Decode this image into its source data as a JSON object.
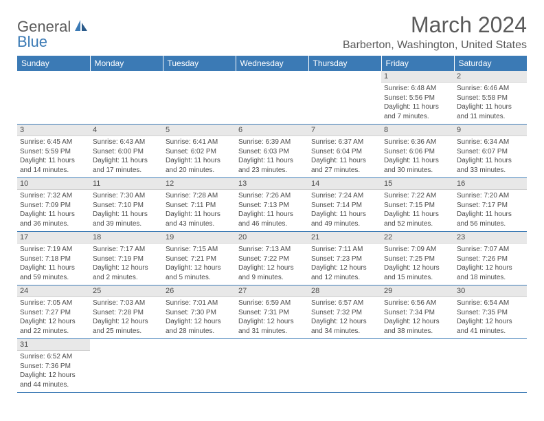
{
  "logo": {
    "general": "General",
    "blue": "Blue"
  },
  "title": "March 2024",
  "location": "Barberton, Washington, United States",
  "colors": {
    "header_bg": "#3b7ab5",
    "header_fg": "#ffffff",
    "daynum_bg": "#e8e8e8",
    "text": "#4a4a4a",
    "title": "#5a5a5a",
    "page_bg": "#ffffff"
  },
  "fonts": {
    "title_size": 32,
    "location_size": 16,
    "dow_size": 12,
    "cell_size": 10
  },
  "dow": [
    "Sunday",
    "Monday",
    "Tuesday",
    "Wednesday",
    "Thursday",
    "Friday",
    "Saturday"
  ],
  "weeks": [
    [
      {
        "n": "",
        "sr": "",
        "ss": "",
        "dl": ""
      },
      {
        "n": "",
        "sr": "",
        "ss": "",
        "dl": ""
      },
      {
        "n": "",
        "sr": "",
        "ss": "",
        "dl": ""
      },
      {
        "n": "",
        "sr": "",
        "ss": "",
        "dl": ""
      },
      {
        "n": "",
        "sr": "",
        "ss": "",
        "dl": ""
      },
      {
        "n": "1",
        "sr": "Sunrise: 6:48 AM",
        "ss": "Sunset: 5:56 PM",
        "dl": "Daylight: 11 hours and 7 minutes."
      },
      {
        "n": "2",
        "sr": "Sunrise: 6:46 AM",
        "ss": "Sunset: 5:58 PM",
        "dl": "Daylight: 11 hours and 11 minutes."
      }
    ],
    [
      {
        "n": "3",
        "sr": "Sunrise: 6:45 AM",
        "ss": "Sunset: 5:59 PM",
        "dl": "Daylight: 11 hours and 14 minutes."
      },
      {
        "n": "4",
        "sr": "Sunrise: 6:43 AM",
        "ss": "Sunset: 6:00 PM",
        "dl": "Daylight: 11 hours and 17 minutes."
      },
      {
        "n": "5",
        "sr": "Sunrise: 6:41 AM",
        "ss": "Sunset: 6:02 PM",
        "dl": "Daylight: 11 hours and 20 minutes."
      },
      {
        "n": "6",
        "sr": "Sunrise: 6:39 AM",
        "ss": "Sunset: 6:03 PM",
        "dl": "Daylight: 11 hours and 23 minutes."
      },
      {
        "n": "7",
        "sr": "Sunrise: 6:37 AM",
        "ss": "Sunset: 6:04 PM",
        "dl": "Daylight: 11 hours and 27 minutes."
      },
      {
        "n": "8",
        "sr": "Sunrise: 6:36 AM",
        "ss": "Sunset: 6:06 PM",
        "dl": "Daylight: 11 hours and 30 minutes."
      },
      {
        "n": "9",
        "sr": "Sunrise: 6:34 AM",
        "ss": "Sunset: 6:07 PM",
        "dl": "Daylight: 11 hours and 33 minutes."
      }
    ],
    [
      {
        "n": "10",
        "sr": "Sunrise: 7:32 AM",
        "ss": "Sunset: 7:09 PM",
        "dl": "Daylight: 11 hours and 36 minutes."
      },
      {
        "n": "11",
        "sr": "Sunrise: 7:30 AM",
        "ss": "Sunset: 7:10 PM",
        "dl": "Daylight: 11 hours and 39 minutes."
      },
      {
        "n": "12",
        "sr": "Sunrise: 7:28 AM",
        "ss": "Sunset: 7:11 PM",
        "dl": "Daylight: 11 hours and 43 minutes."
      },
      {
        "n": "13",
        "sr": "Sunrise: 7:26 AM",
        "ss": "Sunset: 7:13 PM",
        "dl": "Daylight: 11 hours and 46 minutes."
      },
      {
        "n": "14",
        "sr": "Sunrise: 7:24 AM",
        "ss": "Sunset: 7:14 PM",
        "dl": "Daylight: 11 hours and 49 minutes."
      },
      {
        "n": "15",
        "sr": "Sunrise: 7:22 AM",
        "ss": "Sunset: 7:15 PM",
        "dl": "Daylight: 11 hours and 52 minutes."
      },
      {
        "n": "16",
        "sr": "Sunrise: 7:20 AM",
        "ss": "Sunset: 7:17 PM",
        "dl": "Daylight: 11 hours and 56 minutes."
      }
    ],
    [
      {
        "n": "17",
        "sr": "Sunrise: 7:19 AM",
        "ss": "Sunset: 7:18 PM",
        "dl": "Daylight: 11 hours and 59 minutes."
      },
      {
        "n": "18",
        "sr": "Sunrise: 7:17 AM",
        "ss": "Sunset: 7:19 PM",
        "dl": "Daylight: 12 hours and 2 minutes."
      },
      {
        "n": "19",
        "sr": "Sunrise: 7:15 AM",
        "ss": "Sunset: 7:21 PM",
        "dl": "Daylight: 12 hours and 5 minutes."
      },
      {
        "n": "20",
        "sr": "Sunrise: 7:13 AM",
        "ss": "Sunset: 7:22 PM",
        "dl": "Daylight: 12 hours and 9 minutes."
      },
      {
        "n": "21",
        "sr": "Sunrise: 7:11 AM",
        "ss": "Sunset: 7:23 PM",
        "dl": "Daylight: 12 hours and 12 minutes."
      },
      {
        "n": "22",
        "sr": "Sunrise: 7:09 AM",
        "ss": "Sunset: 7:25 PM",
        "dl": "Daylight: 12 hours and 15 minutes."
      },
      {
        "n": "23",
        "sr": "Sunrise: 7:07 AM",
        "ss": "Sunset: 7:26 PM",
        "dl": "Daylight: 12 hours and 18 minutes."
      }
    ],
    [
      {
        "n": "24",
        "sr": "Sunrise: 7:05 AM",
        "ss": "Sunset: 7:27 PM",
        "dl": "Daylight: 12 hours and 22 minutes."
      },
      {
        "n": "25",
        "sr": "Sunrise: 7:03 AM",
        "ss": "Sunset: 7:28 PM",
        "dl": "Daylight: 12 hours and 25 minutes."
      },
      {
        "n": "26",
        "sr": "Sunrise: 7:01 AM",
        "ss": "Sunset: 7:30 PM",
        "dl": "Daylight: 12 hours and 28 minutes."
      },
      {
        "n": "27",
        "sr": "Sunrise: 6:59 AM",
        "ss": "Sunset: 7:31 PM",
        "dl": "Daylight: 12 hours and 31 minutes."
      },
      {
        "n": "28",
        "sr": "Sunrise: 6:57 AM",
        "ss": "Sunset: 7:32 PM",
        "dl": "Daylight: 12 hours and 34 minutes."
      },
      {
        "n": "29",
        "sr": "Sunrise: 6:56 AM",
        "ss": "Sunset: 7:34 PM",
        "dl": "Daylight: 12 hours and 38 minutes."
      },
      {
        "n": "30",
        "sr": "Sunrise: 6:54 AM",
        "ss": "Sunset: 7:35 PM",
        "dl": "Daylight: 12 hours and 41 minutes."
      }
    ],
    [
      {
        "n": "31",
        "sr": "Sunrise: 6:52 AM",
        "ss": "Sunset: 7:36 PM",
        "dl": "Daylight: 12 hours and 44 minutes."
      },
      {
        "n": "",
        "sr": "",
        "ss": "",
        "dl": ""
      },
      {
        "n": "",
        "sr": "",
        "ss": "",
        "dl": ""
      },
      {
        "n": "",
        "sr": "",
        "ss": "",
        "dl": ""
      },
      {
        "n": "",
        "sr": "",
        "ss": "",
        "dl": ""
      },
      {
        "n": "",
        "sr": "",
        "ss": "",
        "dl": ""
      },
      {
        "n": "",
        "sr": "",
        "ss": "",
        "dl": ""
      }
    ]
  ]
}
